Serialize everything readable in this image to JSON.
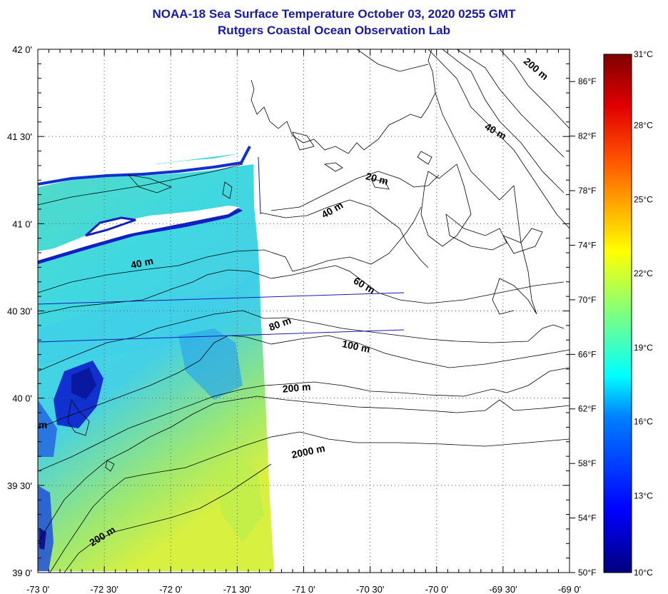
{
  "title": "NOAA-18 Sea Surface Temperature October 03, 2020 0255 GMT",
  "subtitle": "Rutgers Coastal Ocean Observation Lab",
  "map": {
    "lon_range": [
      -73.0,
      -69.0
    ],
    "lat_range": [
      39.0,
      42.0
    ],
    "lon_ticks": [
      "-73 0'",
      "-72 30'",
      "-72 0'",
      "-71 30'",
      "-71 0'",
      "-70 30'",
      "-70 0'",
      "-69 30'",
      "-69 0'"
    ],
    "lat_ticks": [
      "39 0'",
      "39 30'",
      "40 0'",
      "40 30'",
      "41 0'",
      "41 30'",
      "42 0'"
    ],
    "grid": "dotted",
    "contour_labels": [
      "200 m",
      "40 m",
      "20 m",
      "40 m",
      "40 m",
      "60 m",
      "80 m",
      "100 m",
      "200 m",
      "2000 m",
      "200 m",
      "m"
    ]
  },
  "colorbar": {
    "celsius_labels": [
      "31°C",
      "28°C",
      "25°C",
      "22°C",
      "19°C",
      "16°C",
      "13°C",
      "10°C"
    ],
    "fahrenheit_labels": [
      "86°F",
      "82°F",
      "78°F",
      "74°F",
      "70°F",
      "66°F",
      "62°F",
      "58°F",
      "54°F",
      "50°F"
    ],
    "range_c": [
      10,
      31
    ],
    "range_f": [
      50,
      88
    ]
  },
  "colors": {
    "title": "#1a1aa0",
    "contour": "#000000",
    "track_line": "#1a1ab0"
  }
}
